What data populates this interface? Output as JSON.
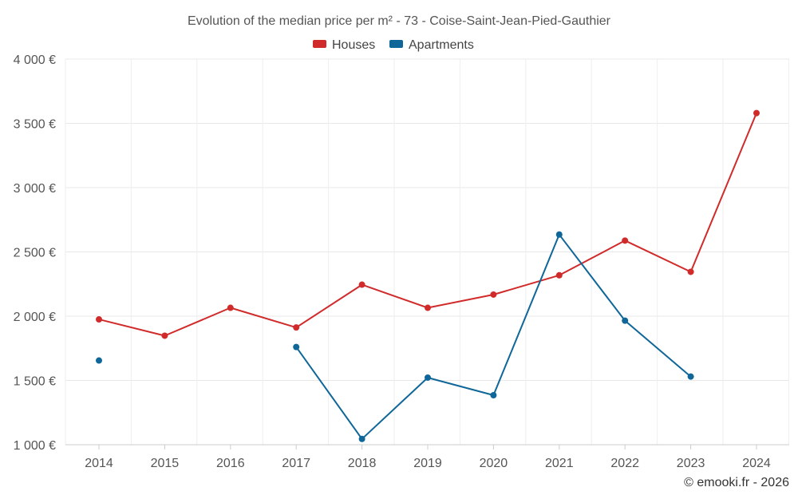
{
  "chart_data": {
    "type": "line",
    "title": "Evolution of the median price per m² - 73 - Coise-Saint-Jean-Pied-Gauthier",
    "categories": [
      "2014",
      "2015",
      "2016",
      "2017",
      "2018",
      "2019",
      "2020",
      "2021",
      "2022",
      "2023",
      "2024"
    ],
    "series": [
      {
        "name": "Houses",
        "color": "#d12a2a",
        "values": [
          1975,
          1848,
          2065,
          1912,
          2245,
          2065,
          2168,
          2318,
          2588,
          2345,
          3580
        ]
      },
      {
        "name": "Apartments",
        "color": "#0e6699",
        "values": [
          1655,
          null,
          null,
          1760,
          1045,
          1522,
          1385,
          2635,
          1965,
          1530,
          null
        ]
      }
    ],
    "ylim": [
      1000,
      4000
    ],
    "yticks": [
      1000,
      1500,
      2000,
      2500,
      3000,
      3500,
      4000
    ],
    "ytick_labels": [
      "1 000 €",
      "1 500 €",
      "2 000 €",
      "2 500 €",
      "3 000 €",
      "3 500 €",
      "4 000 €"
    ],
    "xlabel": "",
    "ylabel": "",
    "grid": true,
    "legend_position": "top-center"
  },
  "credit": "© emooki.fr - 2026"
}
